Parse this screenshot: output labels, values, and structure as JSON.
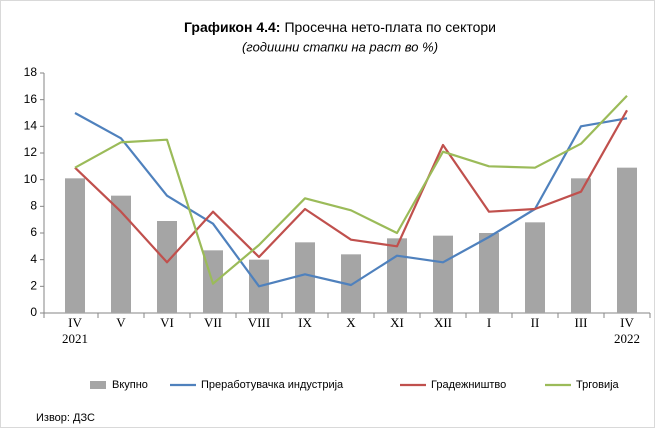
{
  "chart_data": {
    "type": "combo",
    "title_label": "Графикон 4.4:",
    "title": "Просечна нето-плата по сектори",
    "subtitle": "(годишни стапки на раст во %)",
    "source": "Извор: ДЗС",
    "categories": [
      "IV",
      "V",
      "VI",
      "VII",
      "VIII",
      "IX",
      "X",
      "XI",
      "XII",
      "I",
      "II",
      "III",
      "IV"
    ],
    "category_years": [
      "2021",
      null,
      null,
      null,
      null,
      null,
      null,
      null,
      null,
      null,
      null,
      null,
      "2022"
    ],
    "ylim": [
      0,
      18
    ],
    "yticks": [
      0,
      2,
      4,
      6,
      8,
      10,
      12,
      14,
      16,
      18
    ],
    "grid": false,
    "legend": "bottom",
    "series": [
      {
        "name": "Вкупно",
        "type": "bar",
        "color": "#a5a5a5",
        "values": [
          10.1,
          8.8,
          6.9,
          4.7,
          4.0,
          5.3,
          4.4,
          5.6,
          5.8,
          6.0,
          6.8,
          10.1,
          10.9
        ]
      },
      {
        "name": "Преработувачка индустрија",
        "type": "line",
        "color": "#4f81bd",
        "values": [
          15.0,
          13.1,
          8.8,
          6.7,
          2.0,
          2.9,
          2.1,
          4.3,
          3.8,
          5.7,
          7.8,
          14.0,
          14.6
        ]
      },
      {
        "name": "Градежништво",
        "type": "line",
        "color": "#c0504d",
        "values": [
          10.9,
          7.6,
          3.8,
          7.6,
          4.2,
          7.8,
          5.5,
          5.0,
          12.6,
          7.6,
          7.8,
          9.1,
          15.2
        ]
      },
      {
        "name": "Трговија",
        "type": "line",
        "color": "#9bbb59",
        "values": [
          10.9,
          12.8,
          13.0,
          2.2,
          5.1,
          8.6,
          7.7,
          6.0,
          12.1,
          11.0,
          10.9,
          12.7,
          16.3
        ]
      }
    ]
  }
}
